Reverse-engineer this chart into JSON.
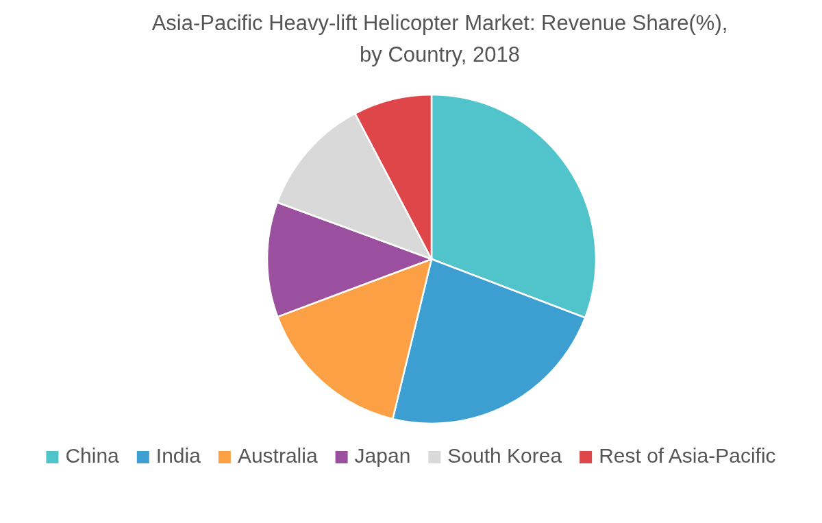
{
  "chart_data": {
    "type": "pie",
    "title": "Asia-Pacific Heavy-lift Helicopter Market: Revenue Share(%), by Country, 2018",
    "categories": [
      "China",
      "India",
      "Australia",
      "Japan",
      "South Korea",
      "Rest of Asia-Pacific"
    ],
    "values": [
      30.8,
      23,
      15.5,
      11.3,
      11.7,
      7.7
    ],
    "colors": [
      "#50c4ca",
      "#3d9fd1",
      "#fba044",
      "#9b4f9f",
      "#d9d9d9",
      "#de4649"
    ],
    "legend": "bottom"
  }
}
